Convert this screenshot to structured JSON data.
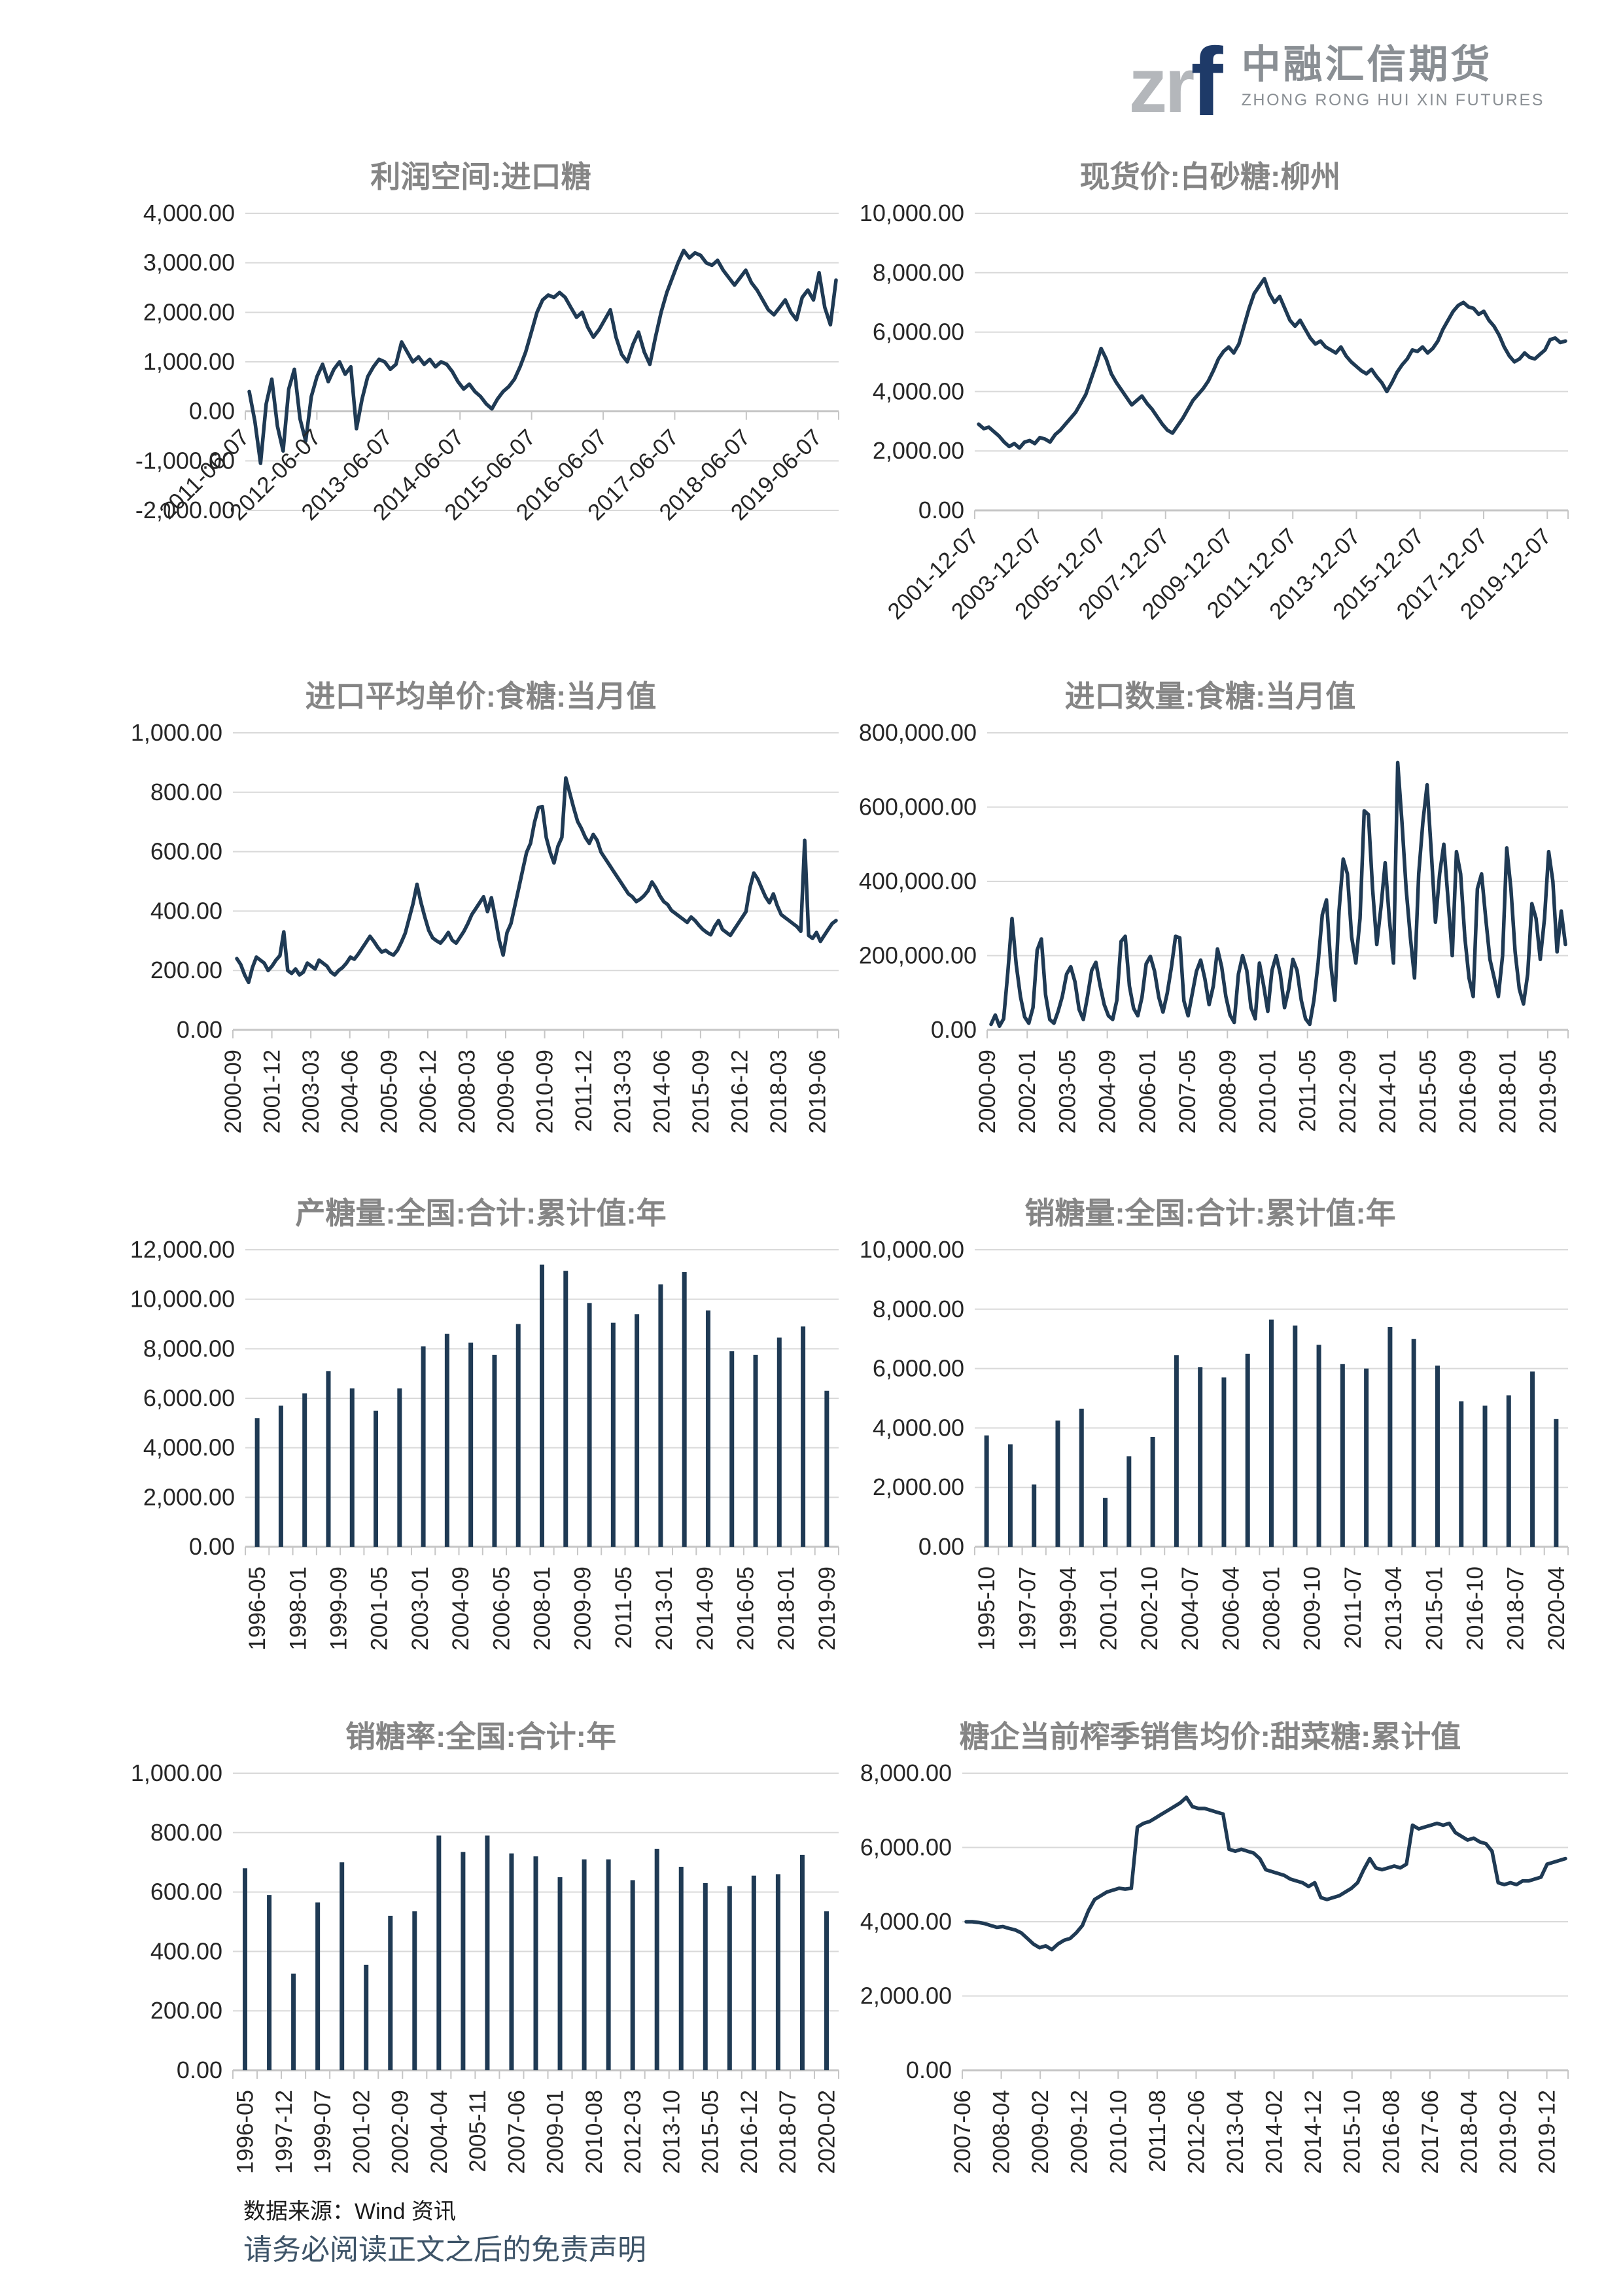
{
  "logo": {
    "acronym_gray": "zr",
    "acronym_blue": "f",
    "company_cn": "中融汇信期货",
    "company_en": "ZHONG RONG HUI XIN FUTURES"
  },
  "footer": {
    "source": "数据来源：Wind 资讯",
    "disclaimer": "请务必阅读正文之后的免责声明"
  },
  "colors": {
    "series": "#1f3a54",
    "grid": "#d9d9d9",
    "axis": "#c6c6c6",
    "tick_label": "#262626",
    "title": "#858585",
    "brand_blue": "#1e3a68",
    "brand_gray": "#8a8f94",
    "disclaimer": "#3e5468"
  },
  "chart_data": [
    {
      "type": "line",
      "title": "利润空间:进口糖",
      "ylim": [
        -2000,
        4000
      ],
      "ystep": 1000,
      "grid": "on",
      "legend": "none",
      "xlabel_rotation": 45,
      "xlabels": [
        "2011-06-07",
        "2012-06-07",
        "2013-06-07",
        "2014-06-07",
        "2015-06-07",
        "2016-06-07",
        "2017-06-07",
        "2018-06-07",
        "2019-06-07"
      ],
      "points": [
        400,
        -200,
        -1050,
        150,
        650,
        -300,
        -800,
        450,
        850,
        -150,
        -600,
        300,
        700,
        950,
        600,
        850,
        1000,
        750,
        900,
        -350,
        250,
        700,
        900,
        1050,
        1000,
        850,
        950,
        1400,
        1200,
        1000,
        1100,
        950,
        1050,
        900,
        1000,
        950,
        800,
        600,
        450,
        550,
        400,
        300,
        150,
        50,
        250,
        400,
        500,
        650,
        900,
        1200,
        1600,
        2000,
        2250,
        2350,
        2300,
        2400,
        2300,
        2100,
        1900,
        2000,
        1700,
        1500,
        1650,
        1850,
        2050,
        1500,
        1150,
        1000,
        1350,
        1600,
        1200,
        950,
        1500,
        2000,
        2400,
        2700,
        3000,
        3250,
        3100,
        3200,
        3150,
        3000,
        2950,
        3050,
        2850,
        2700,
        2550,
        2700,
        2850,
        2600,
        2450,
        2250,
        2050,
        1950,
        2100,
        2250,
        2000,
        1850,
        2300,
        2450,
        2250,
        2800,
        2100,
        1750,
        2650
      ]
    },
    {
      "type": "line",
      "title": "现货价:白砂糖:柳州",
      "ylim": [
        0,
        10000
      ],
      "ystep": 2000,
      "grid": "on",
      "legend": "none",
      "xlabel_rotation": 45,
      "xlabels": [
        "2001-12-07",
        "2003-12-07",
        "2005-12-07",
        "2007-12-07",
        "2009-12-07",
        "2011-12-07",
        "2013-12-07",
        "2015-12-07",
        "2017-12-07",
        "2019-12-07"
      ],
      "points": [
        2900,
        2750,
        2800,
        2650,
        2500,
        2300,
        2150,
        2250,
        2100,
        2300,
        2350,
        2250,
        2450,
        2400,
        2300,
        2550,
        2700,
        2900,
        3100,
        3300,
        3600,
        3900,
        4400,
        4900,
        5450,
        5100,
        4600,
        4300,
        4050,
        3800,
        3550,
        3700,
        3850,
        3600,
        3400,
        3150,
        2900,
        2700,
        2600,
        2850,
        3100,
        3400,
        3700,
        3900,
        4100,
        4350,
        4700,
        5100,
        5350,
        5500,
        5300,
        5600,
        6200,
        6800,
        7300,
        7550,
        7800,
        7300,
        7000,
        7200,
        6800,
        6400,
        6200,
        6400,
        6100,
        5800,
        5600,
        5700,
        5500,
        5400,
        5300,
        5500,
        5200,
        5000,
        4850,
        4700,
        4600,
        4750,
        4500,
        4300,
        4000,
        4300,
        4650,
        4900,
        5100,
        5400,
        5350,
        5500,
        5300,
        5450,
        5700,
        6100,
        6400,
        6700,
        6900,
        7000,
        6850,
        6800,
        6600,
        6700,
        6400,
        6200,
        5900,
        5500,
        5200,
        5000,
        5100,
        5300,
        5150,
        5100,
        5250,
        5400,
        5750,
        5800,
        5650,
        5700
      ]
    },
    {
      "type": "line",
      "title": "进口平均单价:食糖:当月值",
      "ylim": [
        0,
        1000
      ],
      "ystep": 200,
      "grid": "on",
      "legend": "none",
      "xlabel_rotation": 90,
      "xlabels": [
        "2000-09",
        "2001-12",
        "2003-03",
        "2004-06",
        "2005-09",
        "2006-12",
        "2008-03",
        "2009-06",
        "2010-09",
        "2011-12",
        "2013-03",
        "2014-06",
        "2015-09",
        "2016-12",
        "2018-03",
        "2019-06"
      ],
      "points": [
        240,
        220,
        185,
        160,
        210,
        245,
        235,
        225,
        200,
        215,
        235,
        250,
        330,
        200,
        190,
        205,
        185,
        195,
        225,
        215,
        205,
        235,
        225,
        215,
        195,
        185,
        200,
        210,
        225,
        245,
        238,
        255,
        275,
        295,
        315,
        298,
        278,
        262,
        268,
        258,
        252,
        268,
        295,
        325,
        375,
        425,
        490,
        430,
        380,
        335,
        310,
        300,
        292,
        308,
        328,
        302,
        292,
        312,
        332,
        358,
        388,
        408,
        428,
        448,
        398,
        445,
        378,
        302,
        252,
        328,
        358,
        418,
        478,
        538,
        598,
        628,
        698,
        748,
        752,
        648,
        598,
        562,
        618,
        648,
        848,
        798,
        748,
        702,
        678,
        648,
        628,
        658,
        638,
        598,
        578,
        558,
        538,
        518,
        498,
        478,
        458,
        448,
        432,
        440,
        452,
        468,
        498,
        478,
        452,
        432,
        422,
        402,
        392,
        382,
        372,
        362,
        380,
        368,
        352,
        338,
        328,
        320,
        348,
        368,
        338,
        328,
        318,
        338,
        358,
        378,
        398,
        478,
        528,
        508,
        478,
        448,
        428,
        458,
        418,
        388,
        378,
        368,
        358,
        348,
        332,
        638,
        318,
        308,
        328,
        298,
        318,
        338,
        358,
        368
      ]
    },
    {
      "type": "line",
      "title": "进口数量:食糖:当月值",
      "ylim": [
        0,
        800000
      ],
      "ystep": 200000,
      "grid": "on",
      "legend": "none",
      "xlabel_rotation": 90,
      "xlabels": [
        "2000-09",
        "2002-01",
        "2003-05",
        "2004-09",
        "2006-01",
        "2007-05",
        "2008-09",
        "2010-01",
        "2011-05",
        "2012-09",
        "2014-01",
        "2015-05",
        "2016-09",
        "2018-01",
        "2019-05"
      ],
      "points": [
        15000,
        40000,
        10000,
        30000,
        155000,
        300000,
        175000,
        90000,
        35000,
        18000,
        60000,
        215000,
        245000,
        95000,
        28000,
        18000,
        50000,
        90000,
        150000,
        170000,
        130000,
        55000,
        28000,
        90000,
        160000,
        182000,
        120000,
        68000,
        38000,
        28000,
        80000,
        238000,
        252000,
        118000,
        58000,
        38000,
        88000,
        178000,
        198000,
        158000,
        88000,
        48000,
        98000,
        168000,
        252000,
        248000,
        78000,
        38000,
        98000,
        158000,
        188000,
        138000,
        68000,
        118000,
        218000,
        170000,
        90000,
        40000,
        20000,
        150000,
        200000,
        160000,
        60000,
        30000,
        180000,
        120000,
        50000,
        160000,
        200000,
        150000,
        60000,
        110000,
        190000,
        160000,
        80000,
        30000,
        15000,
        80000,
        180000,
        310000,
        350000,
        180000,
        80000,
        320000,
        460000,
        420000,
        250000,
        180000,
        300000,
        590000,
        580000,
        380000,
        230000,
        330000,
        450000,
        300000,
        180000,
        720000,
        560000,
        380000,
        250000,
        140000,
        420000,
        560000,
        660000,
        480000,
        290000,
        420000,
        500000,
        350000,
        200000,
        480000,
        420000,
        250000,
        140000,
        90000,
        380000,
        420000,
        300000,
        190000,
        140000,
        90000,
        200000,
        490000,
        380000,
        210000,
        110000,
        70000,
        150000,
        340000,
        300000,
        190000,
        300000,
        480000,
        400000,
        210000,
        320000,
        230000
      ]
    },
    {
      "type": "bar",
      "title": "产糖量:全国:合计:累计值:年",
      "ylim": [
        0,
        12000
      ],
      "ystep": 2000,
      "grid": "on",
      "legend": "none",
      "xlabel_rotation": 90,
      "xlabels": [
        "1996-05",
        "1998-01",
        "1999-09",
        "2001-05",
        "2003-01",
        "2004-09",
        "2006-05",
        "2008-01",
        "2009-09",
        "2011-05",
        "2013-01",
        "2014-09",
        "2016-05",
        "2018-01",
        "2019-09"
      ],
      "values": [
        5200,
        5700,
        6200,
        7100,
        6400,
        5500,
        6400,
        8100,
        8600,
        8250,
        7750,
        9000,
        11400,
        11150,
        9850,
        9050,
        9400,
        10600,
        11100,
        9550,
        7900,
        7750,
        8450,
        8900,
        6300
      ]
    },
    {
      "type": "bar",
      "title": "销糖量:全国:合计:累计值:年",
      "ylim": [
        0,
        10000
      ],
      "ystep": 2000,
      "grid": "on",
      "legend": "none",
      "xlabel_rotation": 90,
      "xlabels": [
        "1995-10",
        "1997-07",
        "1999-04",
        "2001-01",
        "2002-10",
        "2004-07",
        "2006-04",
        "2008-01",
        "2009-10",
        "2011-07",
        "2013-04",
        "2015-01",
        "2016-10",
        "2018-07",
        "2020-04"
      ],
      "values": [
        3750,
        3450,
        2100,
        4250,
        4650,
        1650,
        3050,
        3700,
        6450,
        6050,
        5700,
        6500,
        7650,
        7450,
        6800,
        6150,
        6000,
        7400,
        7000,
        6100,
        4900,
        4750,
        5100,
        5900,
        4300
      ]
    },
    {
      "type": "bar",
      "title": "销糖率:全国:合计:年",
      "ylim": [
        0,
        1000
      ],
      "ystep": 200,
      "grid": "on",
      "legend": "none",
      "xlabel_rotation": 90,
      "xlabels": [
        "1996-05",
        "1997-12",
        "1999-07",
        "2001-02",
        "2002-09",
        "2004-04",
        "2005-11",
        "2007-06",
        "2009-01",
        "2010-08",
        "2012-03",
        "2013-10",
        "2015-05",
        "2016-12",
        "2018-07",
        "2020-02"
      ],
      "values": [
        680,
        590,
        325,
        565,
        700,
        355,
        520,
        535,
        790,
        735,
        790,
        730,
        720,
        650,
        710,
        710,
        640,
        745,
        685,
        630,
        620,
        655,
        660,
        725,
        535
      ]
    },
    {
      "type": "line",
      "title": "糖企当前榨季销售均价:甜菜糖:累计值",
      "ylim": [
        0,
        8000
      ],
      "ystep": 2000,
      "grid": "on",
      "legend": "none",
      "xlabel_rotation": 90,
      "xlabels": [
        "2007-06",
        "2008-04",
        "2009-02",
        "2009-12",
        "2010-10",
        "2011-08",
        "2012-06",
        "2013-04",
        "2014-02",
        "2014-12",
        "2015-10",
        "2016-08",
        "2017-06",
        "2018-04",
        "2019-02",
        "2019-12"
      ],
      "points": [
        4000,
        4000,
        3980,
        3950,
        3900,
        3850,
        3870,
        3820,
        3780,
        3700,
        3550,
        3400,
        3300,
        3350,
        3250,
        3400,
        3500,
        3550,
        3700,
        3900,
        4300,
        4600,
        4700,
        4800,
        4850,
        4900,
        4880,
        4900,
        6550,
        6650,
        6700,
        6800,
        6900,
        7000,
        7100,
        7200,
        7350,
        7100,
        7050,
        7050,
        7000,
        6950,
        6900,
        5950,
        5900,
        5950,
        5900,
        5850,
        5700,
        5400,
        5350,
        5300,
        5250,
        5150,
        5100,
        5050,
        4950,
        5050,
        4650,
        4600,
        4650,
        4700,
        4800,
        4900,
        5050,
        5400,
        5700,
        5450,
        5400,
        5450,
        5500,
        5450,
        5550,
        6600,
        6500,
        6550,
        6600,
        6650,
        6600,
        6650,
        6400,
        6300,
        6200,
        6250,
        6150,
        6100,
        5900,
        5050,
        5000,
        5050,
        5000,
        5100,
        5100,
        5150,
        5200,
        5550,
        5600,
        5650,
        5700
      ]
    }
  ]
}
